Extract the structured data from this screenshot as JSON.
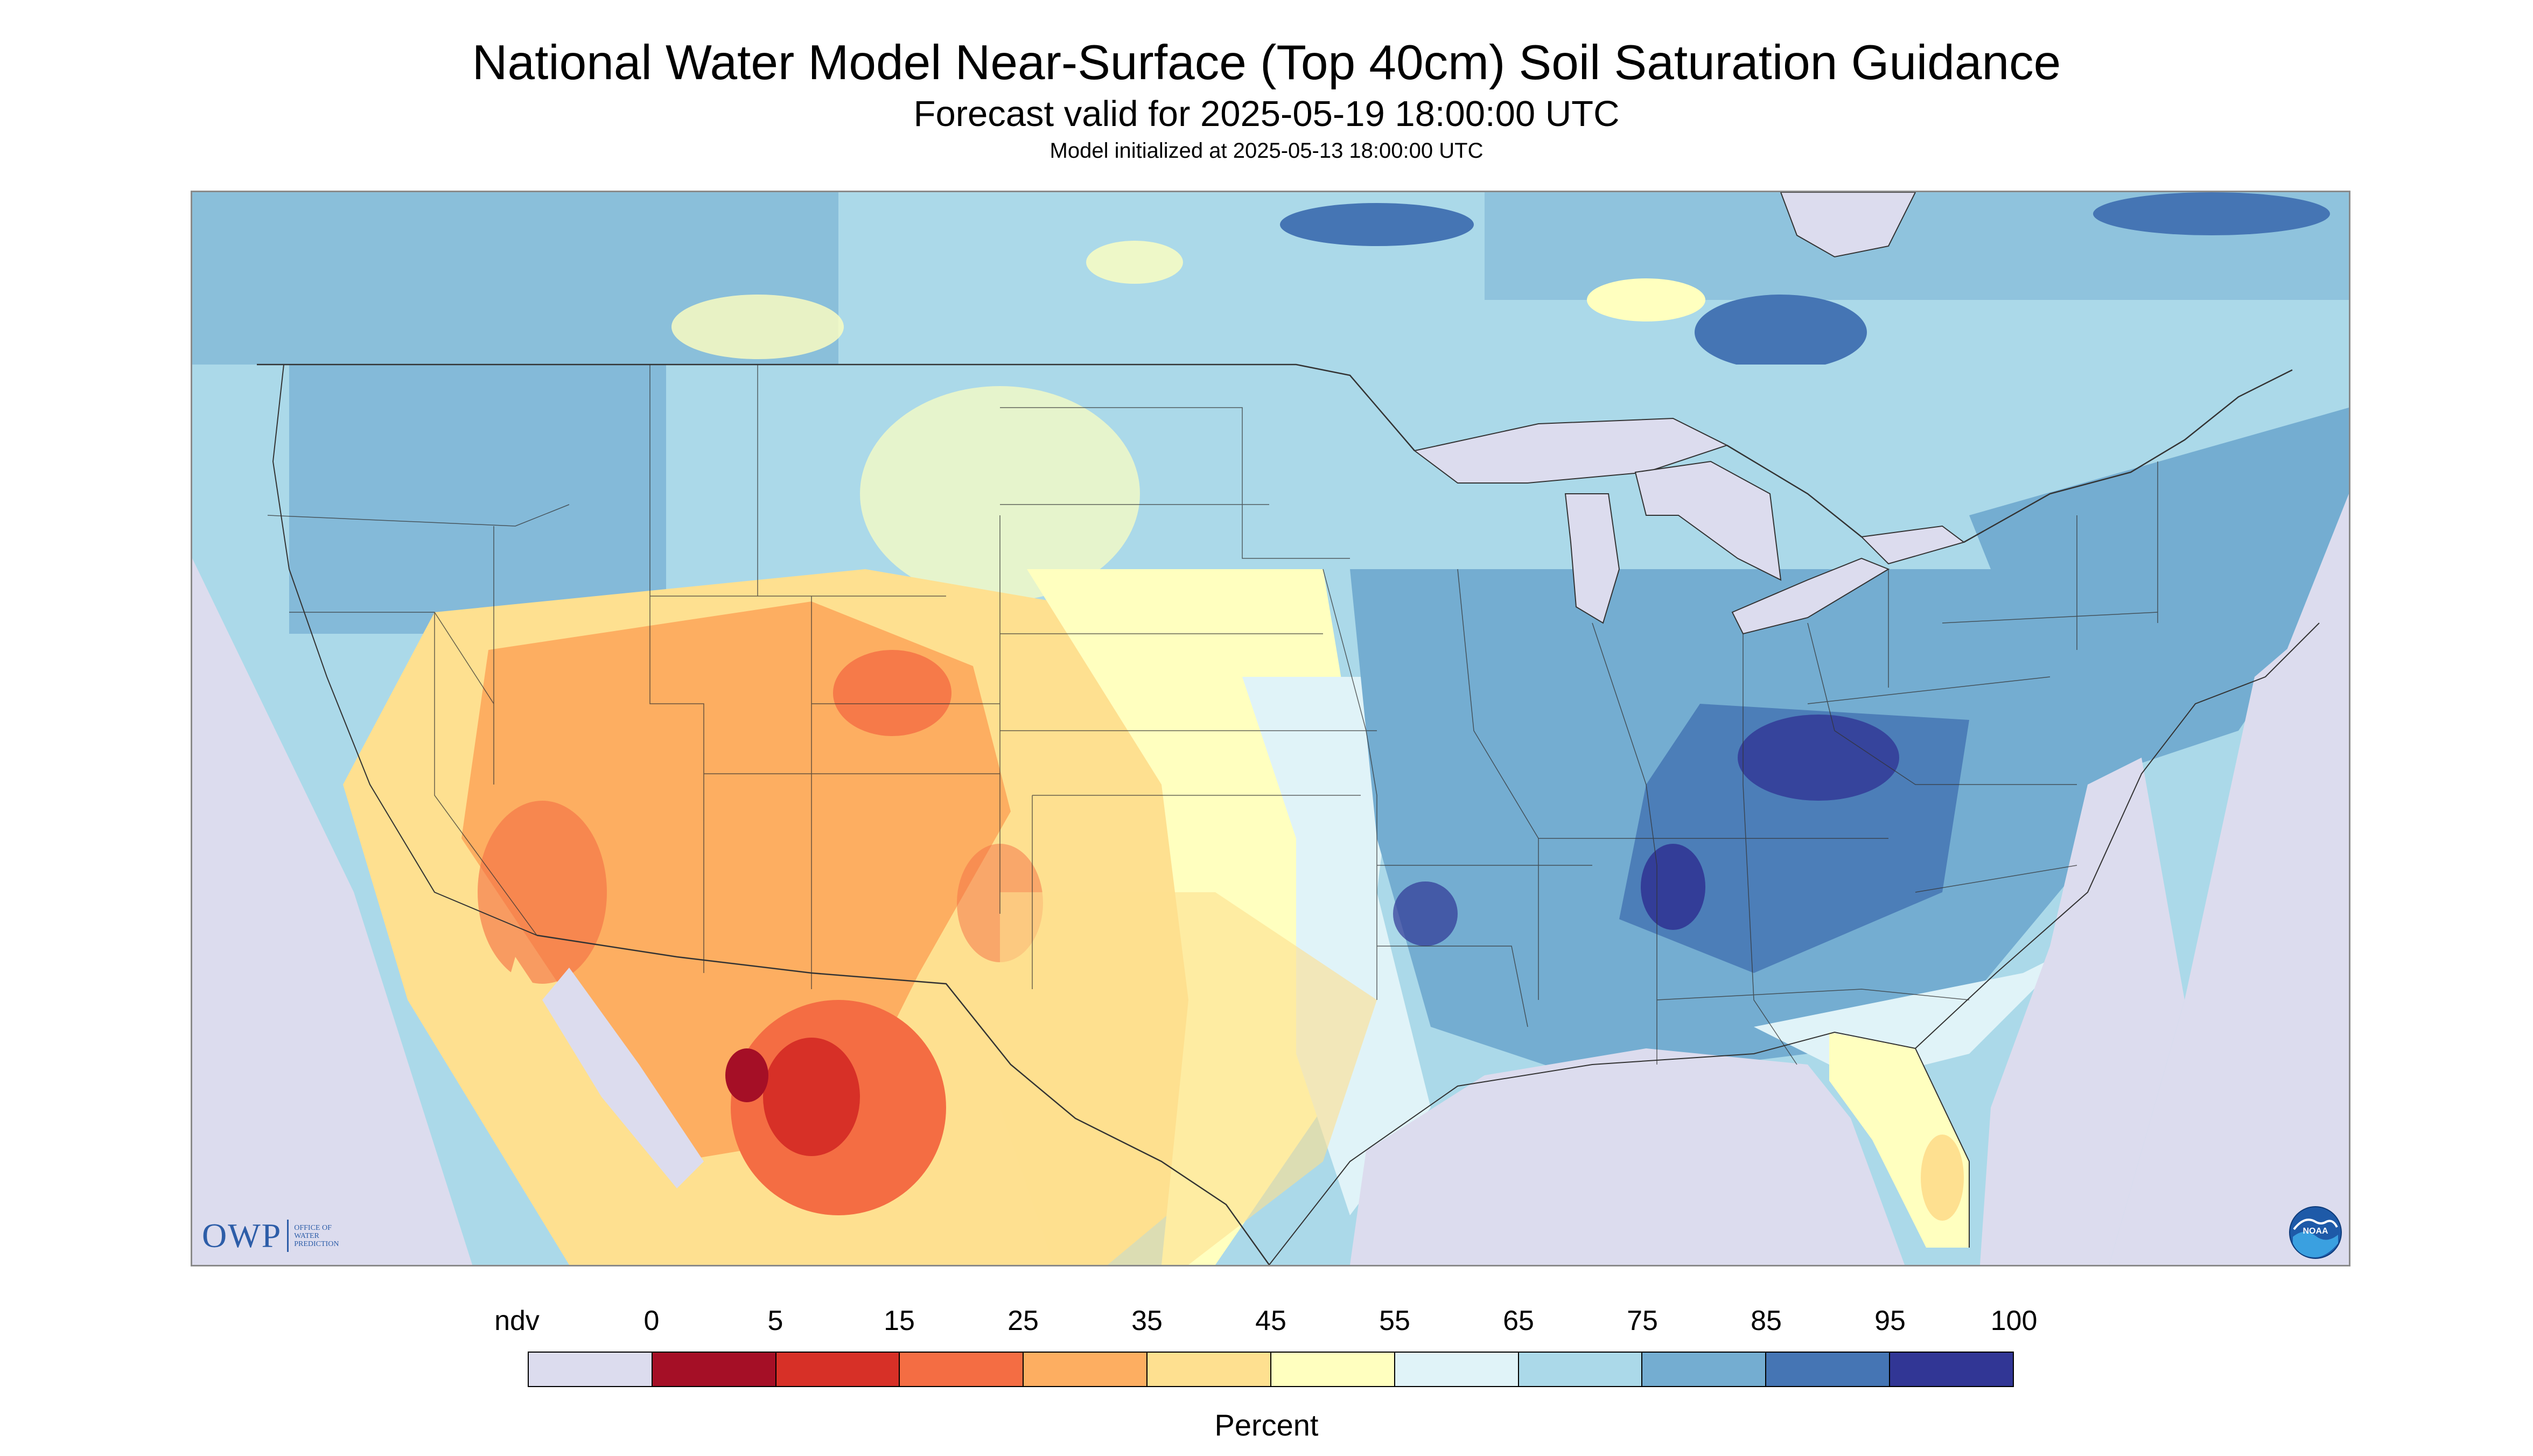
{
  "title": "National Water Model Near-Surface (Top 40cm) Soil Saturation Guidance",
  "subtitle": "Forecast valid for 2025-05-19 18:00:00 UTC",
  "init_line": "Model initialized at 2025-05-13 18:00:00 UTC",
  "logos": {
    "owp_text": "OWP",
    "owp_small": "OFFICE OF\nWATER\nPREDICTION",
    "noaa_text": "NOAA"
  },
  "legend": {
    "unit": "Percent",
    "labels": [
      "ndv",
      "0",
      "5",
      "15",
      "25",
      "35",
      "45",
      "55",
      "65",
      "75",
      "85",
      "95",
      "100"
    ],
    "colors": [
      "#dcdcee",
      "#a50f26",
      "#d73027",
      "#f46d43",
      "#fdae61",
      "#fee090",
      "#ffffbf",
      "#e0f3f8",
      "#abd9e9",
      "#74add1",
      "#4575b4",
      "#313695"
    ]
  },
  "map_colors": {
    "no_data": "#dcdcee",
    "lakes": "#dcdcee",
    "ocean": "#dcdcee",
    "canada_base": "#abd9e9",
    "very_dry": "#a50f26",
    "dry": "#d73027",
    "dry_moderate": "#f46d43",
    "moderate": "#fdae61",
    "moderate_wet": "#fee090",
    "neutral": "#ffffbf",
    "slightly_wet": "#e0f3f8",
    "wet": "#abd9e9",
    "wetter": "#74add1",
    "very_wet": "#4575b4",
    "saturated": "#313695",
    "border_line": "#333333"
  }
}
